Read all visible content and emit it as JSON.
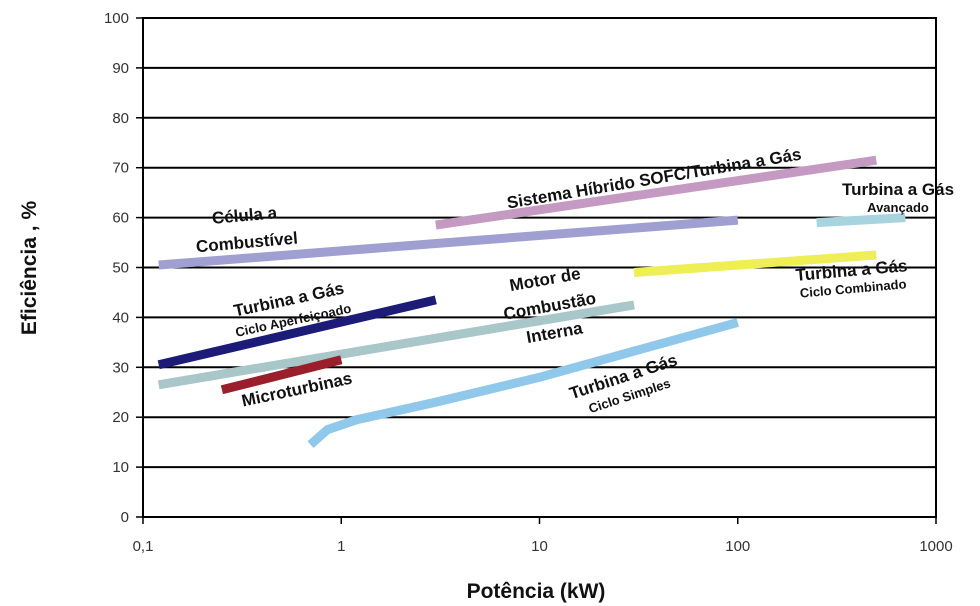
{
  "chart_data": {
    "type": "line",
    "xlabel": "Potência (kW)",
    "ylabel": "Eficiência , %",
    "x_scale": "log",
    "xlim": [
      0.1,
      1000
    ],
    "ylim": [
      0,
      100
    ],
    "xticks": [
      {
        "value": 0.1,
        "label": "0,1"
      },
      {
        "value": 1,
        "label": "1"
      },
      {
        "value": 10,
        "label": "10"
      },
      {
        "value": 100,
        "label": "100"
      },
      {
        "value": 1000,
        "label": "1000"
      }
    ],
    "yticks": [
      0,
      10,
      20,
      30,
      40,
      50,
      60,
      70,
      80,
      90,
      100
    ],
    "grid": "horizontal",
    "series": [
      {
        "name": "Sistema Híbrido SOFC/Turbina a Gás",
        "color": "#c59ac2",
        "points": [
          [
            3,
            58.5
          ],
          [
            500,
            71.5
          ]
        ],
        "label_lines": [
          "Sistema Híbrido SOFC/Turbina a Gás"
        ]
      },
      {
        "name": "Célula a Combustível",
        "color": "#9f9fd2",
        "points": [
          [
            0.12,
            50.5
          ],
          [
            100,
            59.5
          ]
        ],
        "label_lines": [
          "Célula a",
          "Combustível"
        ]
      },
      {
        "name": "Turbina a Gás Avançado",
        "color": "#a8d4e0",
        "points": [
          [
            250,
            59
          ],
          [
            700,
            60
          ]
        ],
        "label_lines": [
          "Turbina a Gás",
          "Avançado"
        ]
      },
      {
        "name": "Turbina a Gás Ciclo Combinado",
        "color": "#eeee55",
        "points": [
          [
            30,
            49
          ],
          [
            500,
            52.5
          ]
        ],
        "label_lines": [
          "Turbina a Gás",
          "Ciclo Combinado"
        ]
      },
      {
        "name": "Turbina a Gás Ciclo Aperfeiçoado",
        "color": "#1c1c78",
        "points": [
          [
            0.12,
            30.5
          ],
          [
            3,
            43.5
          ]
        ],
        "label_lines": [
          "Turbina a Gás",
          "Ciclo Aperfeiçoado"
        ]
      },
      {
        "name": "Motor de Combustão Interna",
        "color": "#a9c6c9",
        "points": [
          [
            0.12,
            26.5
          ],
          [
            30,
            42.5
          ]
        ],
        "label_lines": [
          "Motor de",
          "Combustão",
          "Interna"
        ]
      },
      {
        "name": "Microturbinas",
        "color": "#9a1e2c",
        "points": [
          [
            0.25,
            25.5
          ],
          [
            1,
            31.5
          ]
        ],
        "label_lines": [
          "Microturbinas"
        ]
      },
      {
        "name": "Turbina a Gás Ciclo Simples",
        "color": "#8fc8ea",
        "points": [
          [
            0.7,
            14.5
          ],
          [
            0.85,
            17.5
          ],
          [
            1.2,
            19.5
          ],
          [
            3,
            23
          ],
          [
            10,
            28
          ],
          [
            100,
            39
          ]
        ],
        "label_lines": [
          "Turbina a Gás",
          "Ciclo Simples"
        ]
      }
    ]
  }
}
